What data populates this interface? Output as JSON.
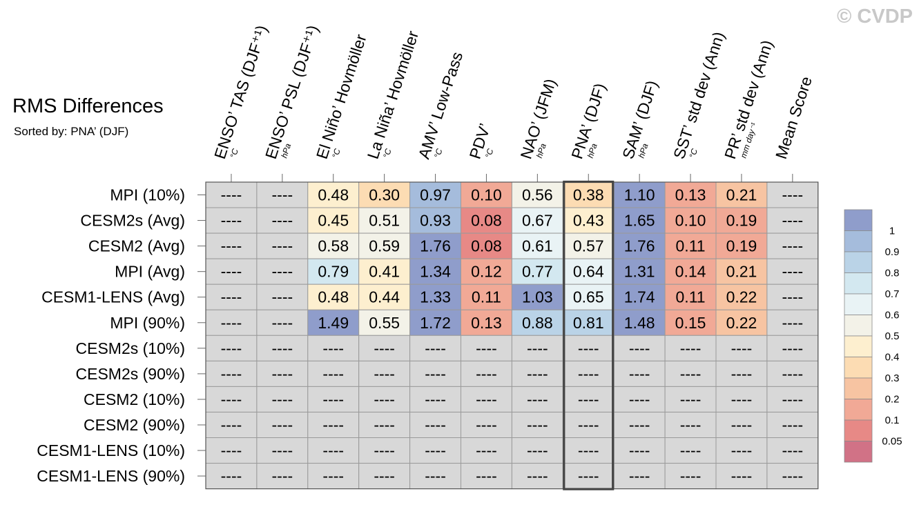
{
  "watermark": "© CVDP",
  "chart_data": {
    "type": "heatmap",
    "title": "RMS Differences",
    "subtitle": "Sorted by: PNA’ (DJF)",
    "columns": [
      {
        "label": "ENSO’ TAS (DJF⁺¹)",
        "unit": "°C"
      },
      {
        "label": "ENSO’ PSL (DJF⁺¹)",
        "unit": "hPa"
      },
      {
        "label": "El Niño’ Hovmöller",
        "unit": "°C"
      },
      {
        "label": "La Niña’ Hovmöller",
        "unit": "°C"
      },
      {
        "label": "AMV’ Low-Pass",
        "unit": "°C"
      },
      {
        "label": "PDV’",
        "unit": "°C"
      },
      {
        "label": "NAO’ (JFM)",
        "unit": "hPa"
      },
      {
        "label": "PNA’ (DJF)",
        "unit": "hPa"
      },
      {
        "label": "SAM’ (DJF)",
        "unit": "hPa"
      },
      {
        "label": "SST’ std dev (Ann)",
        "unit": "°C"
      },
      {
        "label": "PR’ std dev (Ann)",
        "unit": "mm day⁻¹"
      },
      {
        "label": "Mean Score",
        "unit": ""
      }
    ],
    "rows": [
      "MPI (10%)",
      "CESM2s (Avg)",
      "CESM2 (Avg)",
      "MPI (Avg)",
      "CESM1-LENS (Avg)",
      "MPI (90%)",
      "CESM2s (10%)",
      "CESM2s (90%)",
      "CESM2 (10%)",
      "CESM2 (90%)",
      "CESM1-LENS (10%)",
      "CESM1-LENS (90%)"
    ],
    "missing_label": "----",
    "values": [
      [
        null,
        null,
        0.48,
        0.3,
        0.97,
        0.1,
        0.56,
        0.38,
        1.1,
        0.13,
        0.21,
        null
      ],
      [
        null,
        null,
        0.45,
        0.51,
        0.93,
        0.08,
        0.67,
        0.43,
        1.65,
        0.1,
        0.19,
        null
      ],
      [
        null,
        null,
        0.58,
        0.59,
        1.76,
        0.08,
        0.61,
        0.57,
        1.76,
        0.11,
        0.19,
        null
      ],
      [
        null,
        null,
        0.79,
        0.41,
        1.34,
        0.12,
        0.77,
        0.64,
        1.31,
        0.14,
        0.21,
        null
      ],
      [
        null,
        null,
        0.48,
        0.44,
        1.33,
        0.11,
        1.03,
        0.65,
        1.74,
        0.11,
        0.22,
        null
      ],
      [
        null,
        null,
        1.49,
        0.55,
        1.72,
        0.13,
        0.88,
        0.81,
        1.48,
        0.15,
        0.22,
        null
      ],
      [
        null,
        null,
        null,
        null,
        null,
        null,
        null,
        null,
        null,
        null,
        null,
        null
      ],
      [
        null,
        null,
        null,
        null,
        null,
        null,
        null,
        null,
        null,
        null,
        null,
        null
      ],
      [
        null,
        null,
        null,
        null,
        null,
        null,
        null,
        null,
        null,
        null,
        null,
        null
      ],
      [
        null,
        null,
        null,
        null,
        null,
        null,
        null,
        null,
        null,
        null,
        null,
        null
      ],
      [
        null,
        null,
        null,
        null,
        null,
        null,
        null,
        null,
        null,
        null,
        null,
        null
      ],
      [
        null,
        null,
        null,
        null,
        null,
        null,
        null,
        null,
        null,
        null,
        null,
        null
      ]
    ],
    "highlighted_column": "PNA’ (DJF)",
    "colorbar": {
      "ticks": [
        "1",
        "0.9",
        "0.8",
        "0.7",
        "0.6",
        "0.5",
        "0.4",
        "0.3",
        "0.2",
        "0.1",
        "0.05"
      ],
      "colors": [
        "#8f9dcb",
        "#a5bcdc",
        "#bad3e7",
        "#d3e8f0",
        "#e9f3f5",
        "#f3f2e8",
        "#fdefcf",
        "#fcdcb3",
        "#f7c4a2",
        "#f1a996",
        "#e78986",
        "#d17286"
      ],
      "thresholds": [
        1.0,
        0.9,
        0.8,
        0.7,
        0.6,
        0.5,
        0.4,
        0.3,
        0.2,
        0.1,
        0.05
      ]
    },
    "missing_color": "#d8d8d8"
  }
}
